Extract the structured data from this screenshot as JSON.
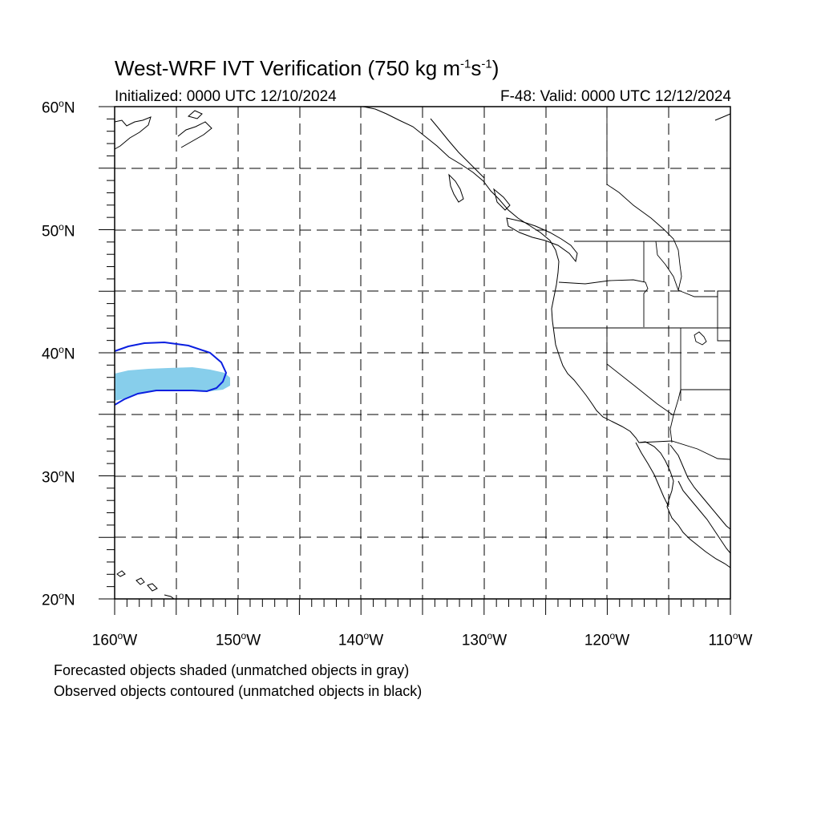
{
  "title": {
    "main": "West-WRF IVT Verification (750 kg m",
    "sup1": "-1",
    "mid": "s",
    "sup2": "-1",
    "end": ")"
  },
  "initialized": "Initialized: 0000 UTC 12/10/2024",
  "valid": "F-48: Valid: 0000 UTC 12/12/2024",
  "lat_labels": [
    {
      "deg": "60",
      "hemi": "N"
    },
    {
      "deg": "50",
      "hemi": "N"
    },
    {
      "deg": "40",
      "hemi": "N"
    },
    {
      "deg": "30",
      "hemi": "N"
    },
    {
      "deg": "20",
      "hemi": "N"
    }
  ],
  "lon_labels": [
    {
      "deg": "160",
      "hemi": "W"
    },
    {
      "deg": "150",
      "hemi": "W"
    },
    {
      "deg": "140",
      "hemi": "W"
    },
    {
      "deg": "130",
      "hemi": "W"
    },
    {
      "deg": "120",
      "hemi": "W"
    },
    {
      "deg": "110",
      "hemi": "W"
    }
  ],
  "degree_symbol": "o",
  "notes": [
    "Forecasted objects shaded (unmatched objects in gray)",
    "Observed objects contoured (unmatched objects in black)"
  ],
  "colors": {
    "forecast_fill": "#87ceeb",
    "observed_contour": "#0a1fe0",
    "grid": "#000000"
  },
  "map": {
    "lon_range": [
      -160,
      -110
    ],
    "lat_range": [
      20,
      60
    ]
  }
}
